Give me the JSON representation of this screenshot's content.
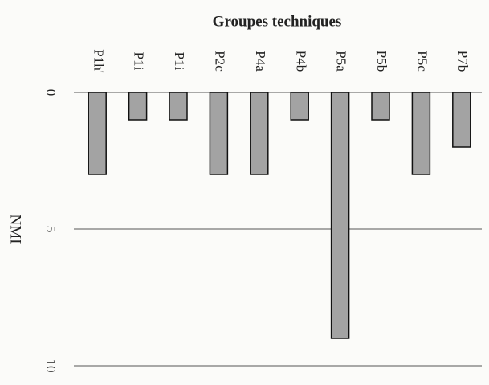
{
  "chart_data": {
    "type": "bar",
    "title": "Groupes techniques",
    "y_label": "NMI",
    "categories": [
      "P1h'",
      "P1i",
      "P1i",
      "P2c",
      "P4a",
      "P4b",
      "P5a",
      "P5b",
      "P5c",
      "P7b"
    ],
    "values": [
      3,
      1,
      1,
      3,
      3,
      1,
      9,
      1,
      3,
      2
    ],
    "color": "#a3a3a3",
    "ylim": [
      0,
      10
    ],
    "yticks": [
      0,
      5,
      10
    ],
    "grid": true
  }
}
